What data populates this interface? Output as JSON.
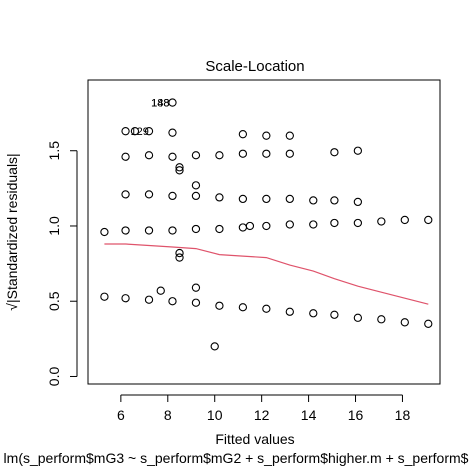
{
  "chart_data": {
    "type": "scatter",
    "title": "Scale-Location",
    "xlabel": "Fitted values",
    "ylabel": "√|Standardized residuals|",
    "caption": "lm(s_perform$mG3 ~ s_perform$mG2 + s_perform$higher.m + s_perform$",
    "xlim": [
      4.6,
      19.6
    ],
    "ylim": [
      -0.05,
      1.97
    ],
    "x_ticks": [
      6,
      8,
      10,
      12,
      14,
      16,
      18
    ],
    "y_ticks": [
      0.0,
      0.5,
      1.0,
      1.5
    ],
    "y_tick_labels": [
      "0.0",
      "0.5",
      "1.0",
      "1.5"
    ],
    "grid": false,
    "point_color": "#000000",
    "smooth_color": "#DF536B",
    "points": [
      {
        "x": 5.3,
        "y": 0.96
      },
      {
        "x": 5.3,
        "y": 0.53
      },
      {
        "x": 6.2,
        "y": 1.63
      },
      {
        "x": 6.2,
        "y": 1.46
      },
      {
        "x": 6.2,
        "y": 1.21
      },
      {
        "x": 6.2,
        "y": 0.97
      },
      {
        "x": 6.2,
        "y": 0.52
      },
      {
        "x": 6.6,
        "y": 1.63
      },
      {
        "x": 7.2,
        "y": 1.63
      },
      {
        "x": 7.2,
        "y": 1.47
      },
      {
        "x": 7.2,
        "y": 1.21
      },
      {
        "x": 7.2,
        "y": 0.97
      },
      {
        "x": 7.2,
        "y": 0.51
      },
      {
        "x": 7.7,
        "y": 0.57
      },
      {
        "x": 8.2,
        "y": 1.82
      },
      {
        "x": 8.2,
        "y": 1.62
      },
      {
        "x": 8.2,
        "y": 1.46
      },
      {
        "x": 8.2,
        "y": 1.2
      },
      {
        "x": 8.2,
        "y": 0.97
      },
      {
        "x": 8.2,
        "y": 0.5
      },
      {
        "x": 8.5,
        "y": 1.39
      },
      {
        "x": 8.5,
        "y": 1.37
      },
      {
        "x": 8.5,
        "y": 0.82
      },
      {
        "x": 8.5,
        "y": 0.79
      },
      {
        "x": 9.2,
        "y": 1.47
      },
      {
        "x": 9.2,
        "y": 1.27
      },
      {
        "x": 9.2,
        "y": 1.2
      },
      {
        "x": 9.2,
        "y": 0.98
      },
      {
        "x": 9.2,
        "y": 0.59
      },
      {
        "x": 9.2,
        "y": 0.49
      },
      {
        "x": 10.0,
        "y": 0.2
      },
      {
        "x": 10.2,
        "y": 1.47
      },
      {
        "x": 10.2,
        "y": 1.19
      },
      {
        "x": 10.2,
        "y": 0.98
      },
      {
        "x": 10.2,
        "y": 0.47
      },
      {
        "x": 11.2,
        "y": 1.61
      },
      {
        "x": 11.2,
        "y": 1.48
      },
      {
        "x": 11.2,
        "y": 1.18
      },
      {
        "x": 11.2,
        "y": 0.99
      },
      {
        "x": 11.2,
        "y": 0.46
      },
      {
        "x": 11.5,
        "y": 1.0
      },
      {
        "x": 12.2,
        "y": 1.6
      },
      {
        "x": 12.2,
        "y": 1.48
      },
      {
        "x": 12.2,
        "y": 1.18
      },
      {
        "x": 12.2,
        "y": 1.0
      },
      {
        "x": 12.2,
        "y": 0.45
      },
      {
        "x": 13.2,
        "y": 1.6
      },
      {
        "x": 13.2,
        "y": 1.48
      },
      {
        "x": 13.2,
        "y": 1.18
      },
      {
        "x": 13.2,
        "y": 1.01
      },
      {
        "x": 13.2,
        "y": 0.43
      },
      {
        "x": 14.2,
        "y": 1.17
      },
      {
        "x": 14.2,
        "y": 1.01
      },
      {
        "x": 14.2,
        "y": 0.42
      },
      {
        "x": 15.1,
        "y": 1.49
      },
      {
        "x": 15.1,
        "y": 1.17
      },
      {
        "x": 15.1,
        "y": 1.02
      },
      {
        "x": 15.1,
        "y": 0.41
      },
      {
        "x": 16.1,
        "y": 1.5
      },
      {
        "x": 16.1,
        "y": 1.16
      },
      {
        "x": 16.1,
        "y": 1.02
      },
      {
        "x": 16.1,
        "y": 0.39
      },
      {
        "x": 17.1,
        "y": 1.03
      },
      {
        "x": 17.1,
        "y": 0.38
      },
      {
        "x": 18.1,
        "y": 1.04
      },
      {
        "x": 18.1,
        "y": 0.36
      },
      {
        "x": 19.1,
        "y": 1.04
      },
      {
        "x": 19.1,
        "y": 0.35
      }
    ],
    "smooth_line": [
      {
        "x": 5.3,
        "y": 0.88
      },
      {
        "x": 6.2,
        "y": 0.88
      },
      {
        "x": 7.2,
        "y": 0.87
      },
      {
        "x": 8.2,
        "y": 0.86
      },
      {
        "x": 9.2,
        "y": 0.85
      },
      {
        "x": 10.2,
        "y": 0.81
      },
      {
        "x": 11.2,
        "y": 0.8
      },
      {
        "x": 12.2,
        "y": 0.79
      },
      {
        "x": 13.2,
        "y": 0.74
      },
      {
        "x": 14.2,
        "y": 0.7
      },
      {
        "x": 15.1,
        "y": 0.65
      },
      {
        "x": 16.1,
        "y": 0.6
      },
      {
        "x": 17.1,
        "y": 0.56
      },
      {
        "x": 18.1,
        "y": 0.52
      },
      {
        "x": 19.1,
        "y": 0.48
      }
    ],
    "annotations": [
      {
        "text": "129",
        "x": 6.2,
        "y": 1.63,
        "anchor": "start"
      },
      {
        "text": "188",
        "x": 8.2,
        "y": 1.82,
        "anchor": "end"
      },
      {
        "text": "148",
        "x": 8.2,
        "y": 1.82,
        "anchor": "end"
      }
    ]
  }
}
